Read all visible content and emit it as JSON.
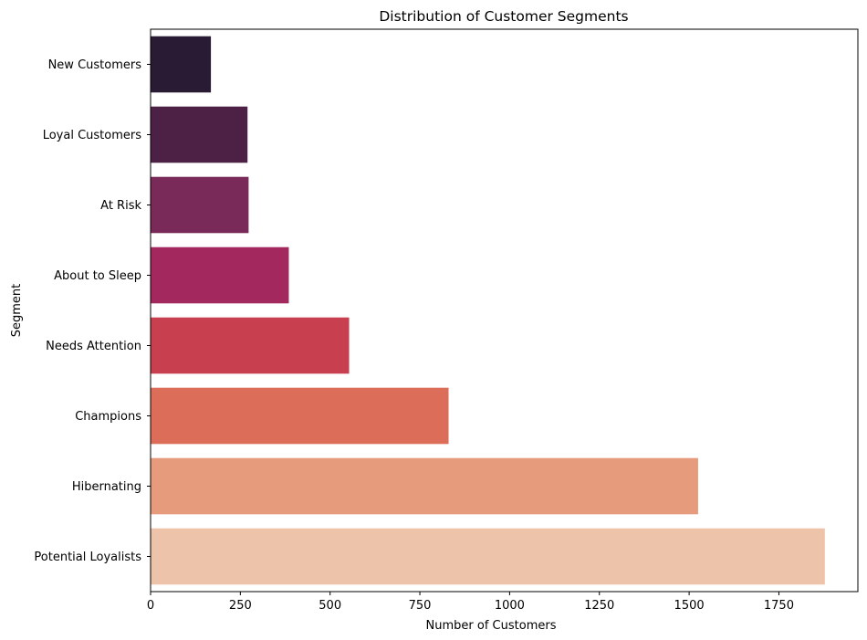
{
  "chart_data": {
    "type": "bar",
    "orientation": "horizontal",
    "title": "Distribution of Customer Segments",
    "xlabel": "Number of Customers",
    "ylabel": "Segment",
    "categories": [
      "New Customers",
      "Loyal Customers",
      "At Risk",
      "About to Sleep",
      "Needs Attention",
      "Champions",
      "Hibernating",
      "Potential Loyalists"
    ],
    "values": [
      168,
      270,
      273,
      385,
      553,
      830,
      1525,
      1878
    ],
    "colors": [
      "#281b33",
      "#4d2146",
      "#792a58",
      "#a2285e",
      "#c8404f",
      "#dc6d58",
      "#e69b7c",
      "#edc4aa"
    ],
    "xlim": [
      0,
      1970
    ],
    "xticks": [
      0,
      250,
      500,
      750,
      1000,
      1250,
      1500,
      1750
    ],
    "grid": false
  }
}
